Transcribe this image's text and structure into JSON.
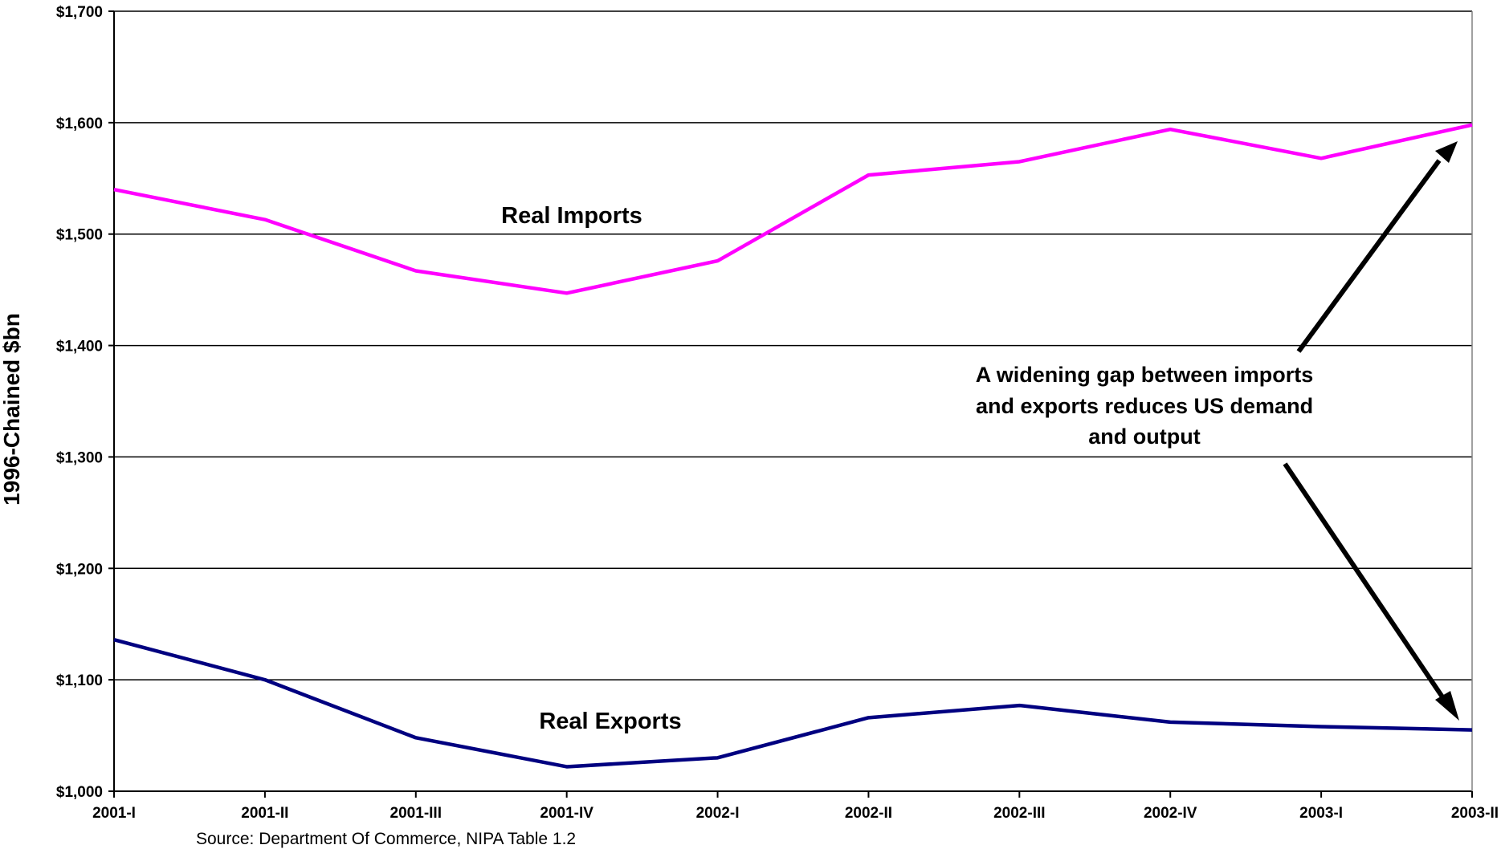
{
  "chart_data": {
    "type": "line",
    "title": "",
    "xlabel": "",
    "ylabel": "1996-Chained $bn",
    "categories": [
      "2001-I",
      "2001-II",
      "2001-III",
      "2001-IV",
      "2002-I",
      "2002-II",
      "2002-III",
      "2002-IV",
      "2003-I",
      "2003-II"
    ],
    "ylim": [
      1000,
      1700
    ],
    "yticks": [
      1000,
      1100,
      1200,
      1300,
      1400,
      1500,
      1600,
      1700
    ],
    "ytick_labels": [
      "$1,000",
      "$1,100",
      "$1,200",
      "$1,300",
      "$1,400",
      "$1,500",
      "$1,600",
      "$1,700"
    ],
    "grid": true,
    "series": [
      {
        "name": "Real Imports",
        "color": "#ff00ff",
        "values": [
          1540,
          1513,
          1467,
          1447,
          1476,
          1553,
          1565,
          1594,
          1568,
          1598
        ]
      },
      {
        "name": "Real Exports",
        "color": "#000080",
        "values": [
          1136,
          1100,
          1048,
          1022,
          1030,
          1066,
          1077,
          1062,
          1058,
          1055
        ]
      }
    ],
    "annotation": {
      "lines": [
        "A widening gap between imports",
        "and exports reduces US demand",
        "and output"
      ]
    },
    "source": "Source: Department Of Commerce, NIPA Table 1.2"
  }
}
